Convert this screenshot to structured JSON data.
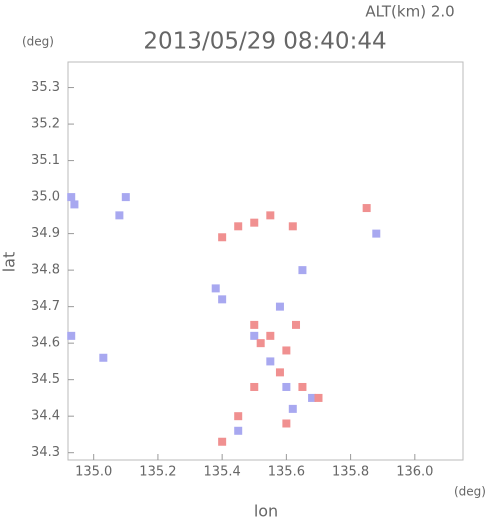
{
  "chart_data": {
    "type": "scatter",
    "title": "2013/05/29 08:40:44",
    "subtitle": "ALT(km) 2.0",
    "y_unit": "(deg)",
    "x_unit": "(deg)",
    "x_label": "lon",
    "y_label": "lat",
    "xlim": [
      134.92,
      136.15
    ],
    "ylim": [
      34.28,
      35.37
    ],
    "xticks": [
      {
        "value": 135,
        "label": "135.0"
      },
      135.2,
      135.4,
      135.6,
      135.8,
      {
        "value": 136,
        "label": "136.0"
      }
    ],
    "yticks": [
      34.3,
      34.4,
      34.5,
      34.6,
      34.7,
      34.8,
      34.9,
      {
        "value": 35,
        "label": "35.0"
      },
      35.1,
      35.2,
      35.3
    ],
    "series": [
      {
        "color": "#a8a8f0",
        "x": [
          134.93,
          134.94,
          135.1,
          135.08,
          134.93,
          135.03,
          135.38,
          135.4,
          135.5,
          135.55,
          135.6,
          135.68,
          135.62,
          135.45,
          135.58,
          135.65,
          135.88
        ],
        "values": [
          35.0,
          34.98,
          35.0,
          34.95,
          34.62,
          34.56,
          34.75,
          34.72,
          34.62,
          34.55,
          34.48,
          34.45,
          34.42,
          34.36,
          34.7,
          34.8,
          34.9
        ]
      },
      {
        "color": "#f09090",
        "x": [
          135.45,
          135.5,
          135.4,
          135.55,
          135.62,
          135.5,
          135.55,
          135.6,
          135.58,
          135.52,
          135.65,
          135.6,
          135.45,
          135.5,
          135.7,
          135.85,
          135.63,
          135.4
        ],
        "values": [
          34.92,
          34.93,
          34.89,
          34.95,
          34.92,
          34.65,
          34.62,
          34.58,
          34.52,
          34.6,
          34.48,
          34.38,
          34.4,
          34.48,
          34.45,
          34.97,
          34.65,
          34.33
        ]
      }
    ]
  }
}
